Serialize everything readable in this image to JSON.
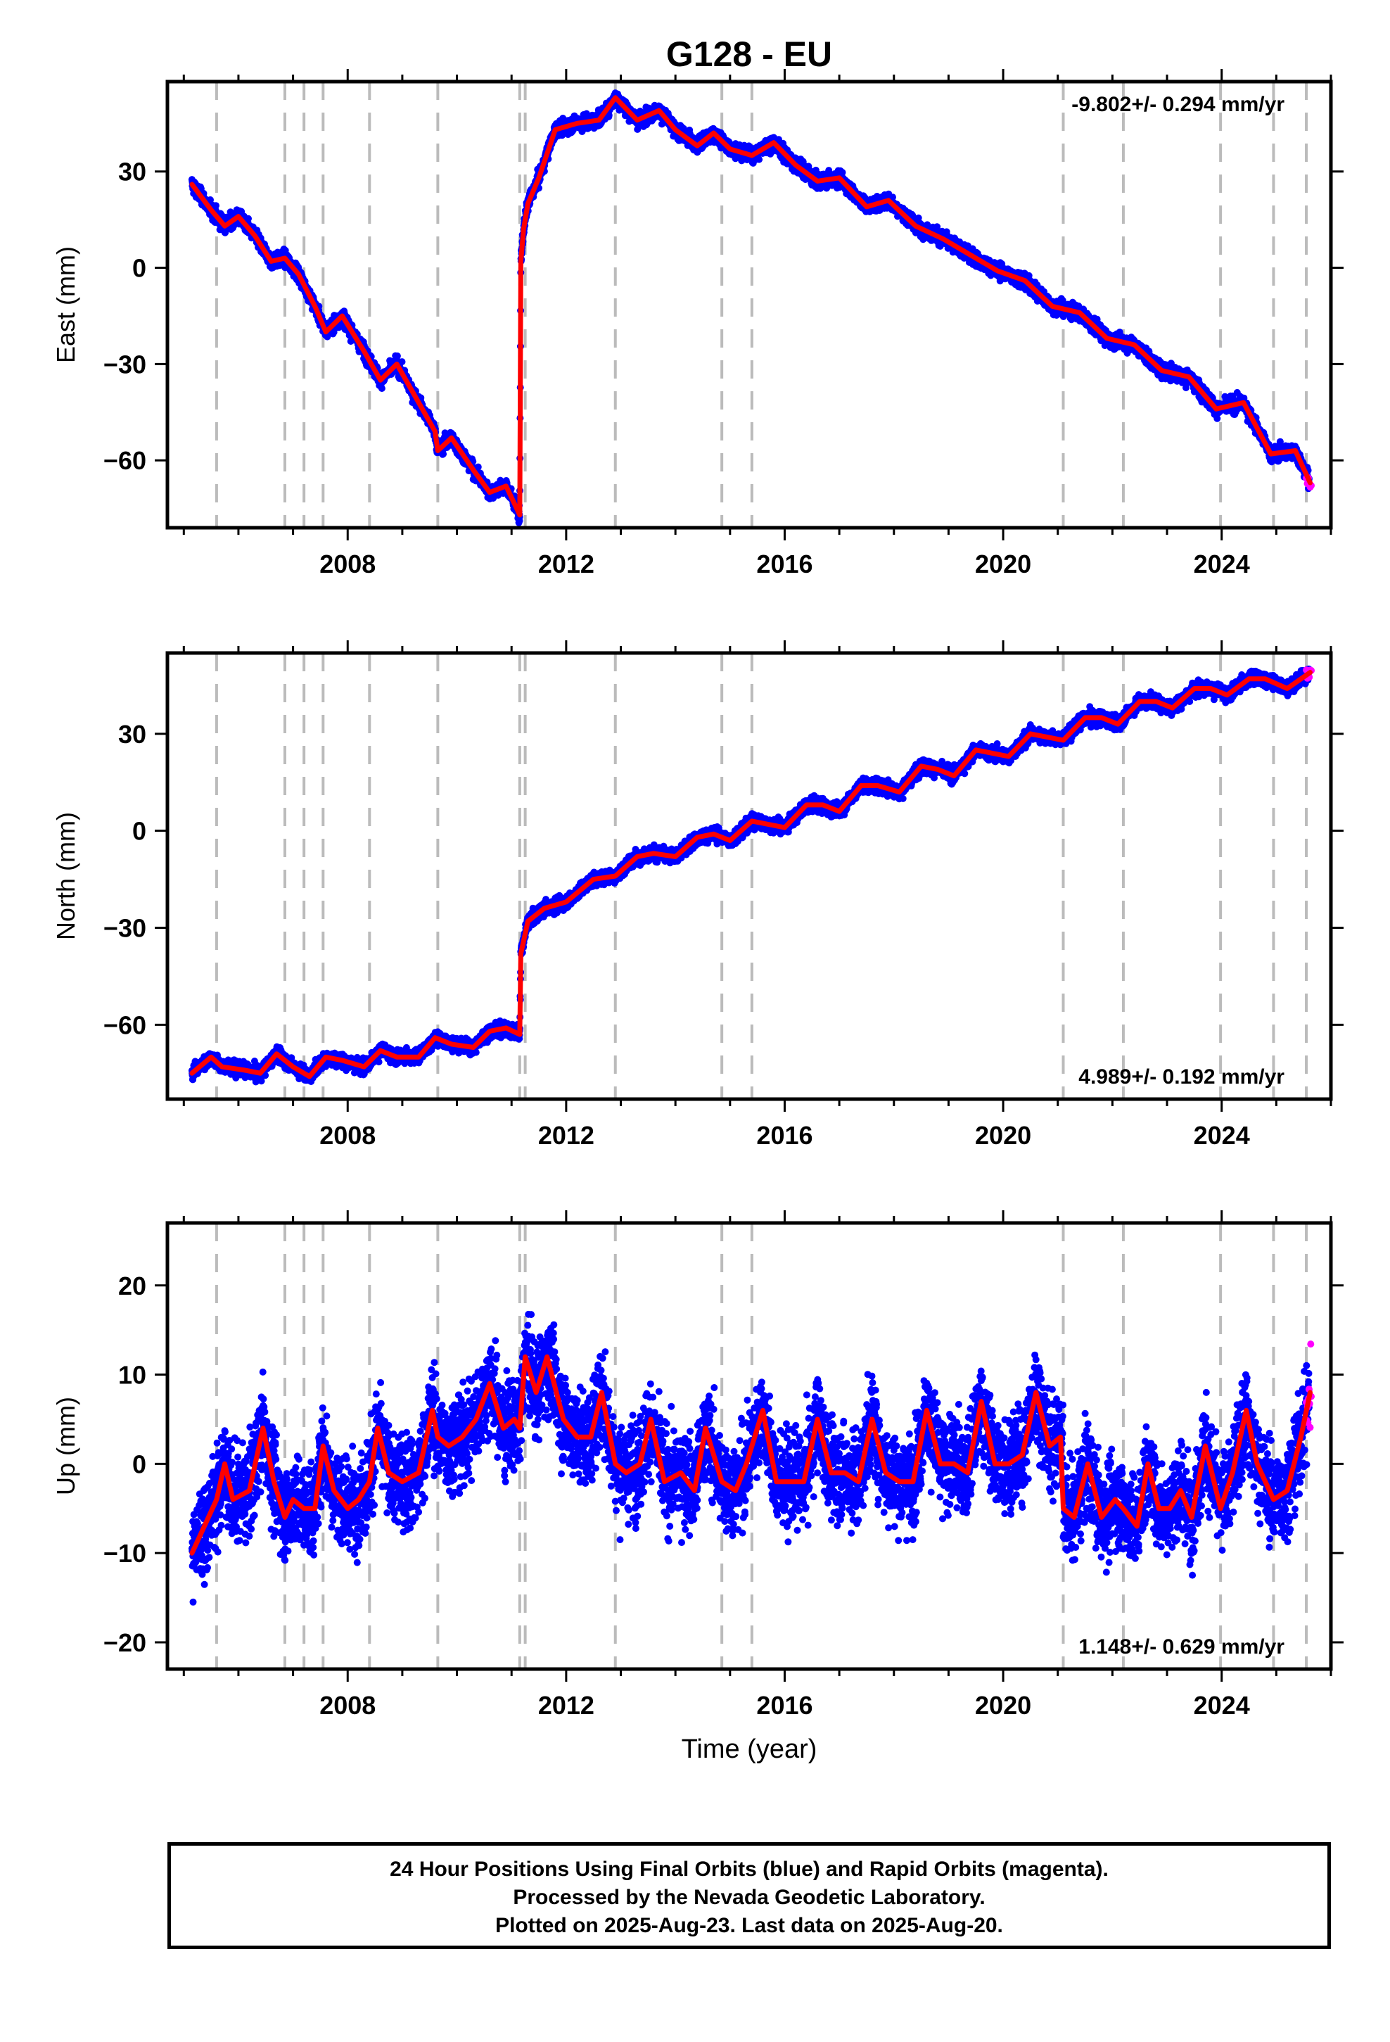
{
  "title": "G128 - EU",
  "colors": {
    "final": "#0000ff",
    "rapid": "#ff00ff",
    "model": "#ff0000",
    "event": "#bbbbbb",
    "frame": "#000000"
  },
  "footer": {
    "line1": "24 Hour Positions Using Final Orbits (blue) and Rapid Orbits (magenta).",
    "line2": "Processed by the Nevada Geodetic Laboratory.",
    "line3": "Plotted on 2025-Aug-23. Last data on 2025-Aug-20."
  },
  "chart_data": [
    {
      "type": "scatter",
      "panel": "east",
      "title": "G128 - EU",
      "xlabel": "",
      "ylabel": "East (mm)",
      "xlim": [
        2004.7,
        2026.0
      ],
      "ylim": [
        -81,
        58
      ],
      "xticks": [
        2008,
        2012,
        2016,
        2020,
        2024
      ],
      "yticks": [
        -60,
        -30,
        0,
        30
      ],
      "annotation": "-9.802+/- 0.294 mm/yr",
      "annotation_position": "top-right",
      "event_lines": [
        2005.6,
        2006.85,
        2007.2,
        2007.55,
        2008.4,
        2009.65,
        2011.15,
        2011.25,
        2012.9,
        2014.85,
        2015.4,
        2021.1,
        2022.2,
        2023.98,
        2024.95,
        2025.55
      ],
      "model": {
        "segments": [
          {
            "x": [
              2005.15,
              2005.5,
              2005.75,
              2006.0,
              2006.3,
              2006.6,
              2006.85,
              2007.1,
              2007.4,
              2007.6,
              2007.9,
              2008.3,
              2008.6,
              2008.9,
              2009.3,
              2009.6,
              2009.65,
              2009.9,
              2010.3,
              2010.6,
              2010.9,
              2011.15
            ],
            "y": [
              26,
              18,
              13,
              16,
              10,
              2,
              3,
              -2,
              -12,
              -20,
              -15,
              -26,
              -35,
              -30,
              -42,
              -51,
              -57,
              -53,
              -63,
              -70,
              -68,
              -77
            ]
          },
          {
            "x": [
              2011.15,
              2011.17,
              2011.22,
              2011.3,
              2011.5,
              2011.8,
              2012.2,
              2012.6,
              2012.9,
              2013.3,
              2013.7,
              2014.0,
              2014.4,
              2014.7,
              2015.0,
              2015.4,
              2015.8,
              2016.2,
              2016.6,
              2017.0,
              2017.5,
              2017.9,
              2018.4,
              2018.9,
              2019.4,
              2019.9,
              2020.4,
              2020.9,
              2021.4,
              2021.9,
              2022.4,
              2022.9,
              2023.4,
              2023.9,
              2024.4,
              2024.9,
              2025.35,
              2025.62
            ],
            "y": [
              -77,
              2,
              12,
              20,
              28,
              43,
              45,
              46,
              53,
              46,
              49,
              43,
              38,
              42,
              37,
              35,
              39,
              32,
              27,
              28,
              19,
              21,
              13,
              9,
              4,
              -1,
              -4,
              -12,
              -14,
              -22,
              -24,
              -32,
              -34,
              -44,
              -42,
              -58,
              -57,
              -67
            ]
          }
        ]
      },
      "series": [
        {
          "name": "Final Orbits",
          "color": "blue",
          "count": 7000,
          "noise_mm": 1.6,
          "x_range": [
            2005.15,
            2025.6
          ]
        },
        {
          "name": "Rapid Orbits",
          "color": "magenta",
          "count": 6,
          "noise_mm": 1.5,
          "x_range": [
            2025.55,
            2025.64
          ]
        }
      ]
    },
    {
      "type": "scatter",
      "panel": "north",
      "xlabel": "",
      "ylabel": "North (mm)",
      "xlim": [
        2004.7,
        2026.0
      ],
      "ylim": [
        -83,
        55
      ],
      "xticks": [
        2008,
        2012,
        2016,
        2020,
        2024
      ],
      "yticks": [
        -60,
        -30,
        0,
        30
      ],
      "annotation": "4.989+/- 0.192 mm/yr",
      "annotation_position": "bottom-right",
      "event_lines": [
        2005.6,
        2006.85,
        2007.2,
        2007.55,
        2008.4,
        2009.65,
        2011.15,
        2011.25,
        2012.9,
        2014.85,
        2015.4,
        2021.1,
        2022.2,
        2023.98,
        2024.95,
        2025.55
      ],
      "model": {
        "segments": [
          {
            "x": [
              2005.15,
              2005.5,
              2005.7,
              2006.1,
              2006.4,
              2006.7,
              2007.0,
              2007.3,
              2007.6,
              2007.9,
              2008.3,
              2008.6,
              2008.9,
              2009.3,
              2009.6,
              2009.9,
              2010.3,
              2010.6,
              2010.9,
              2011.15
            ],
            "y": [
              -75,
              -70,
              -73,
              -74,
              -75,
              -69,
              -73,
              -76,
              -70,
              -71,
              -73,
              -68,
              -70,
              -70,
              -64,
              -66,
              -67,
              -62,
              -61,
              -63
            ]
          },
          {
            "x": [
              2011.15,
              2011.17,
              2011.3,
              2011.6,
              2012.0,
              2012.5,
              2012.9,
              2013.3,
              2013.6,
              2014.0,
              2014.4,
              2014.7,
              2015.0,
              2015.4,
              2015.7,
              2016.0,
              2016.4,
              2016.7,
              2017.0,
              2017.4,
              2017.7,
              2018.1,
              2018.5,
              2018.8,
              2019.1,
              2019.5,
              2019.8,
              2020.1,
              2020.5,
              2020.8,
              2021.1,
              2021.5,
              2021.8,
              2022.1,
              2022.5,
              2022.8,
              2023.1,
              2023.5,
              2023.8,
              2024.1,
              2024.5,
              2024.8,
              2025.2,
              2025.62
            ],
            "y": [
              -63,
              -38,
              -28,
              -24,
              -22,
              -15,
              -14,
              -8,
              -7,
              -8,
              -2,
              -1,
              -3,
              3,
              2,
              1,
              8,
              8,
              6,
              14,
              14,
              12,
              20,
              19,
              17,
              25,
              24,
              23,
              30,
              29,
              28,
              35,
              35,
              33,
              40,
              40,
              38,
              44,
              44,
              42,
              47,
              47,
              44,
              49
            ]
          }
        ]
      },
      "series": [
        {
          "name": "Final Orbits",
          "color": "blue",
          "count": 7000,
          "noise_mm": 1.5,
          "x_range": [
            2005.15,
            2025.6
          ]
        },
        {
          "name": "Rapid Orbits",
          "color": "magenta",
          "count": 6,
          "noise_mm": 1.5,
          "x_range": [
            2025.55,
            2025.64
          ]
        }
      ]
    },
    {
      "type": "scatter",
      "panel": "up",
      "xlabel": "Time (year)",
      "ylabel": "Up (mm)",
      "xlim": [
        2004.7,
        2026.0
      ],
      "ylim": [
        -23,
        27
      ],
      "xticks": [
        2008,
        2012,
        2016,
        2020,
        2024
      ],
      "yticks": [
        -20,
        -10,
        0,
        10,
        20
      ],
      "annotation": "1.148+/- 0.629 mm/yr",
      "annotation_position": "bottom-right",
      "event_lines": [
        2005.6,
        2006.85,
        2007.2,
        2007.55,
        2008.4,
        2009.65,
        2011.15,
        2011.25,
        2012.9,
        2014.85,
        2015.4,
        2021.1,
        2022.2,
        2023.98,
        2024.95,
        2025.55
      ],
      "model": {
        "segments": [
          {
            "x": [
              2005.15,
              2005.3,
              2005.6,
              2005.75,
              2005.9,
              2006.2,
              2006.45,
              2006.65,
              2006.85,
              2007.0,
              2007.2,
              2007.4,
              2007.55,
              2007.75,
              2008.0,
              2008.2,
              2008.4,
              2008.55,
              2008.75,
              2009.0,
              2009.3,
              2009.55,
              2009.65,
              2009.85,
              2010.1,
              2010.35,
              2010.6,
              2010.85,
              2011.05,
              2011.15
            ],
            "y": [
              -10,
              -8,
              -4,
              0,
              -4,
              -3,
              4,
              -2,
              -6,
              -4,
              -5,
              -5,
              2,
              -3,
              -5,
              -4,
              -2,
              4,
              -1,
              -2,
              -1,
              6,
              3,
              2,
              3,
              5,
              9,
              4,
              5,
              4
            ]
          },
          {
            "x": [
              2011.15,
              2011.25,
              2011.45,
              2011.65,
              2011.95,
              2012.2,
              2012.45,
              2012.65,
              2012.9,
              2013.1,
              2013.35,
              2013.55,
              2013.8,
              2014.1,
              2014.35,
              2014.55,
              2014.85,
              2015.1,
              2015.3,
              2015.6,
              2015.85,
              2016.1,
              2016.35,
              2016.6,
              2016.85,
              2017.1,
              2017.35,
              2017.6,
              2017.85,
              2018.1,
              2018.35,
              2018.6,
              2018.85,
              2019.1,
              2019.35,
              2019.6,
              2019.85,
              2020.1,
              2020.35,
              2020.6,
              2020.85,
              2021.05
            ],
            "y": [
              4,
              12,
              8,
              12,
              5,
              3,
              3,
              8,
              0,
              -1,
              0,
              5,
              -2,
              -1,
              -3,
              4,
              -2,
              -3,
              0,
              6,
              -2,
              -2,
              -2,
              5,
              -1,
              -1,
              -2,
              5,
              -1,
              -2,
              -2,
              6,
              0,
              0,
              -1,
              7,
              0,
              0,
              1,
              8,
              2,
              3
            ]
          },
          {
            "x": [
              2021.1,
              2021.3,
              2021.55,
              2021.8,
              2022.05,
              2022.2,
              2022.45,
              2022.65,
              2022.85,
              2023.05,
              2023.25,
              2023.45,
              2023.7,
              2023.98,
              2024.2,
              2024.45,
              2024.65,
              2024.95,
              2025.2,
              2025.45,
              2025.62
            ],
            "y": [
              -5,
              -6,
              0,
              -6,
              -4,
              -5,
              -7,
              0,
              -5,
              -5,
              -3,
              -6,
              2,
              -5,
              -1,
              6,
              0,
              -4,
              -3,
              3,
              8
            ]
          }
        ]
      },
      "series": [
        {
          "name": "Final Orbits",
          "color": "blue",
          "count": 7000,
          "noise_mm": 3.6,
          "x_range": [
            2005.15,
            2025.6
          ]
        },
        {
          "name": "Rapid Orbits",
          "color": "magenta",
          "count": 10,
          "noise_mm": 4.0,
          "x_range": [
            2025.55,
            2025.64
          ]
        }
      ]
    }
  ]
}
